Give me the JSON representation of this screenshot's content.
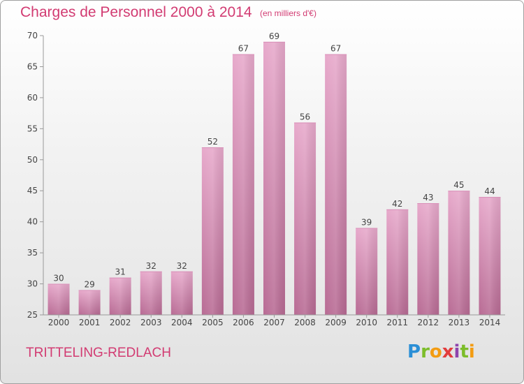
{
  "header": {
    "title": "Charges de Personnel 2000 à 2014",
    "subtitle": "(en milliers d'€)"
  },
  "footer": {
    "place": "TRITTELING-REDLACH",
    "logo": "Proxiti"
  },
  "colors": {
    "title": "#d23b72",
    "bar_top": "#e7a9cb",
    "bar_bottom": "#b86b94"
  },
  "chart_data": {
    "type": "bar",
    "title": "Charges de Personnel 2000 à 2014",
    "subtitle": "(en milliers d'€)",
    "categories": [
      "2000",
      "2001",
      "2002",
      "2003",
      "2004",
      "2005",
      "2006",
      "2007",
      "2008",
      "2009",
      "2010",
      "2011",
      "2012",
      "2013",
      "2014"
    ],
    "values": [
      30,
      29,
      31,
      32,
      32,
      52,
      67,
      69,
      56,
      67,
      39,
      42,
      43,
      45,
      44
    ],
    "ylim": [
      25,
      70
    ],
    "yticks": [
      25,
      30,
      35,
      40,
      45,
      50,
      55,
      60,
      65,
      70
    ],
    "grid": false,
    "legend": "none"
  }
}
